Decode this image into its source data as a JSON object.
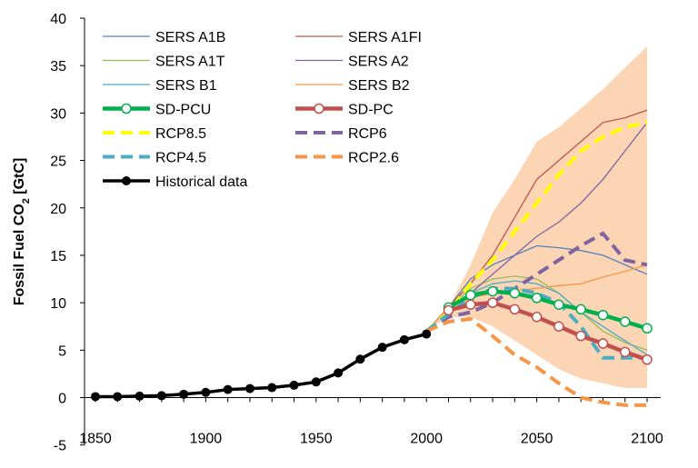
{
  "chart_data": {
    "type": "line",
    "title": "",
    "xlabel": "",
    "ylabel": "Fossil Fuel CO2 [GtC]",
    "ylabel_parts": {
      "pre": "Fossil Fuel CO",
      "sub": "2",
      "post": " [GtC]"
    },
    "xlim": [
      1850,
      2100
    ],
    "ylim": [
      -5,
      40
    ],
    "xticks": [
      1850,
      1900,
      1950,
      2000,
      2050,
      2100
    ],
    "yticks": [
      -5,
      0,
      5,
      10,
      15,
      20,
      25,
      30,
      35,
      40
    ],
    "grid": false,
    "legend_position": "top-left",
    "band": {
      "color": "#fcd5b5",
      "upper": [
        [
          2000,
          7
        ],
        [
          2010,
          9.5
        ],
        [
          2020,
          14
        ],
        [
          2030,
          19.5
        ],
        [
          2040,
          23
        ],
        [
          2050,
          27
        ],
        [
          2060,
          28.5
        ],
        [
          2070,
          30.5
        ],
        [
          2080,
          32.5
        ],
        [
          2090,
          34.8
        ],
        [
          2100,
          37
        ]
      ],
      "lower": [
        [
          2000,
          7
        ],
        [
          2010,
          8.5
        ],
        [
          2020,
          8.5
        ],
        [
          2030,
          7.5
        ],
        [
          2040,
          6
        ],
        [
          2050,
          4.5
        ],
        [
          2060,
          3
        ],
        [
          2070,
          2
        ],
        [
          2080,
          1.5
        ],
        [
          2090,
          1
        ],
        [
          2100,
          1
        ]
      ]
    },
    "series": [
      {
        "name": "SERS A1B",
        "color": "#4f81bd",
        "style": "thin",
        "points": [
          [
            2000,
            7
          ],
          [
            2010,
            9.5
          ],
          [
            2020,
            12.5
          ],
          [
            2030,
            14
          ],
          [
            2040,
            15
          ],
          [
            2050,
            16
          ],
          [
            2060,
            15.8
          ],
          [
            2070,
            15.5
          ],
          [
            2080,
            15
          ],
          [
            2090,
            14
          ],
          [
            2100,
            13
          ]
        ]
      },
      {
        "name": "SERS A1FI",
        "color": "#c0504d",
        "style": "thin",
        "points": [
          [
            2000,
            7
          ],
          [
            2010,
            9.5
          ],
          [
            2020,
            12
          ],
          [
            2030,
            15
          ],
          [
            2040,
            19
          ],
          [
            2050,
            23
          ],
          [
            2060,
            25
          ],
          [
            2070,
            27
          ],
          [
            2080,
            29
          ],
          [
            2090,
            29.5
          ],
          [
            2100,
            30.3
          ]
        ]
      },
      {
        "name": "SERS A1T",
        "color": "#9bbb59",
        "style": "thin",
        "points": [
          [
            2000,
            7
          ],
          [
            2010,
            9.5
          ],
          [
            2020,
            11.5
          ],
          [
            2030,
            12.5
          ],
          [
            2040,
            12.8
          ],
          [
            2050,
            12.5
          ],
          [
            2060,
            11
          ],
          [
            2070,
            9
          ],
          [
            2080,
            7
          ],
          [
            2090,
            5.8
          ],
          [
            2100,
            5
          ]
        ]
      },
      {
        "name": "SERS A2",
        "color": "#8064a2",
        "style": "thin",
        "points": [
          [
            2000,
            7
          ],
          [
            2010,
            9.5
          ],
          [
            2020,
            11
          ],
          [
            2030,
            13
          ],
          [
            2040,
            15
          ],
          [
            2050,
            17
          ],
          [
            2060,
            18.5
          ],
          [
            2070,
            20.5
          ],
          [
            2080,
            23
          ],
          [
            2090,
            26
          ],
          [
            2100,
            29
          ]
        ]
      },
      {
        "name": "SERS B1",
        "color": "#4bacc6",
        "style": "thin",
        "points": [
          [
            2000,
            7
          ],
          [
            2010,
            9.5
          ],
          [
            2020,
            11
          ],
          [
            2030,
            12
          ],
          [
            2040,
            12.3
          ],
          [
            2050,
            12
          ],
          [
            2060,
            11
          ],
          [
            2070,
            9
          ],
          [
            2080,
            7.5
          ],
          [
            2090,
            6
          ],
          [
            2100,
            4.5
          ]
        ]
      },
      {
        "name": "SERS B2",
        "color": "#f79646",
        "style": "thin",
        "points": [
          [
            2000,
            7
          ],
          [
            2010,
            9.5
          ],
          [
            2020,
            10.5
          ],
          [
            2030,
            11
          ],
          [
            2040,
            11.3
          ],
          [
            2050,
            11.5
          ],
          [
            2060,
            11.8
          ],
          [
            2070,
            12
          ],
          [
            2080,
            12.7
          ],
          [
            2090,
            13.3
          ],
          [
            2100,
            14
          ]
        ]
      },
      {
        "name": "SD-PCU",
        "color": "#00b050",
        "style": "thick-marker",
        "points": [
          [
            2010,
            9.5
          ],
          [
            2020,
            10.8
          ],
          [
            2030,
            11.2
          ],
          [
            2040,
            11
          ],
          [
            2050,
            10.5
          ],
          [
            2060,
            9.8
          ],
          [
            2070,
            9.3
          ],
          [
            2080,
            8.7
          ],
          [
            2090,
            8
          ],
          [
            2100,
            7.3
          ]
        ]
      },
      {
        "name": "SD-PC",
        "color": "#c0504d",
        "style": "thick-marker",
        "points": [
          [
            2010,
            9.2
          ],
          [
            2020,
            9.8
          ],
          [
            2030,
            10
          ],
          [
            2040,
            9.3
          ],
          [
            2050,
            8.5
          ],
          [
            2060,
            7.5
          ],
          [
            2070,
            6.5
          ],
          [
            2080,
            5.7
          ],
          [
            2090,
            4.8
          ],
          [
            2100,
            4
          ]
        ]
      },
      {
        "name": "RCP8.5",
        "color": "#ffff00",
        "style": "dashed",
        "points": [
          [
            2000,
            7
          ],
          [
            2010,
            9
          ],
          [
            2020,
            12
          ],
          [
            2030,
            14.5
          ],
          [
            2040,
            17.5
          ],
          [
            2050,
            20.5
          ],
          [
            2060,
            23.5
          ],
          [
            2070,
            26
          ],
          [
            2080,
            27.5
          ],
          [
            2090,
            28.5
          ],
          [
            2100,
            29
          ]
        ]
      },
      {
        "name": "RCP6",
        "color": "#8064a2",
        "style": "dashed",
        "points": [
          [
            2000,
            7
          ],
          [
            2010,
            8.5
          ],
          [
            2020,
            9
          ],
          [
            2030,
            10
          ],
          [
            2040,
            11.5
          ],
          [
            2050,
            13
          ],
          [
            2060,
            14.5
          ],
          [
            2070,
            16
          ],
          [
            2080,
            17.3
          ],
          [
            2090,
            14.5
          ],
          [
            2100,
            14
          ]
        ]
      },
      {
        "name": "RCP4.5",
        "color": "#4bacc6",
        "style": "dashed",
        "points": [
          [
            2000,
            7
          ],
          [
            2010,
            8.8
          ],
          [
            2020,
            10.5
          ],
          [
            2030,
            11.5
          ],
          [
            2040,
            11.5
          ],
          [
            2050,
            11
          ],
          [
            2060,
            10
          ],
          [
            2070,
            7.5
          ],
          [
            2080,
            4.2
          ],
          [
            2090,
            4.2
          ],
          [
            2100,
            4.2
          ]
        ]
      },
      {
        "name": "RCP2.6",
        "color": "#f79646",
        "style": "dashed",
        "points": [
          [
            2000,
            7
          ],
          [
            2010,
            8
          ],
          [
            2020,
            8.3
          ],
          [
            2030,
            6.5
          ],
          [
            2040,
            4.5
          ],
          [
            2050,
            3.2
          ],
          [
            2060,
            1.5
          ],
          [
            2070,
            0
          ],
          [
            2080,
            -0.5
          ],
          [
            2090,
            -0.8
          ],
          [
            2100,
            -0.8
          ]
        ]
      },
      {
        "name": "Historical data",
        "color": "#000000",
        "style": "thick-dot",
        "points": [
          [
            1850,
            0.1
          ],
          [
            1860,
            0.1
          ],
          [
            1870,
            0.15
          ],
          [
            1880,
            0.2
          ],
          [
            1890,
            0.35
          ],
          [
            1900,
            0.55
          ],
          [
            1910,
            0.85
          ],
          [
            1920,
            0.95
          ],
          [
            1930,
            1.05
          ],
          [
            1940,
            1.3
          ],
          [
            1950,
            1.65
          ],
          [
            1960,
            2.6
          ],
          [
            1970,
            4.05
          ],
          [
            1980,
            5.3
          ],
          [
            1990,
            6.1
          ],
          [
            2000,
            6.7
          ]
        ]
      }
    ]
  }
}
